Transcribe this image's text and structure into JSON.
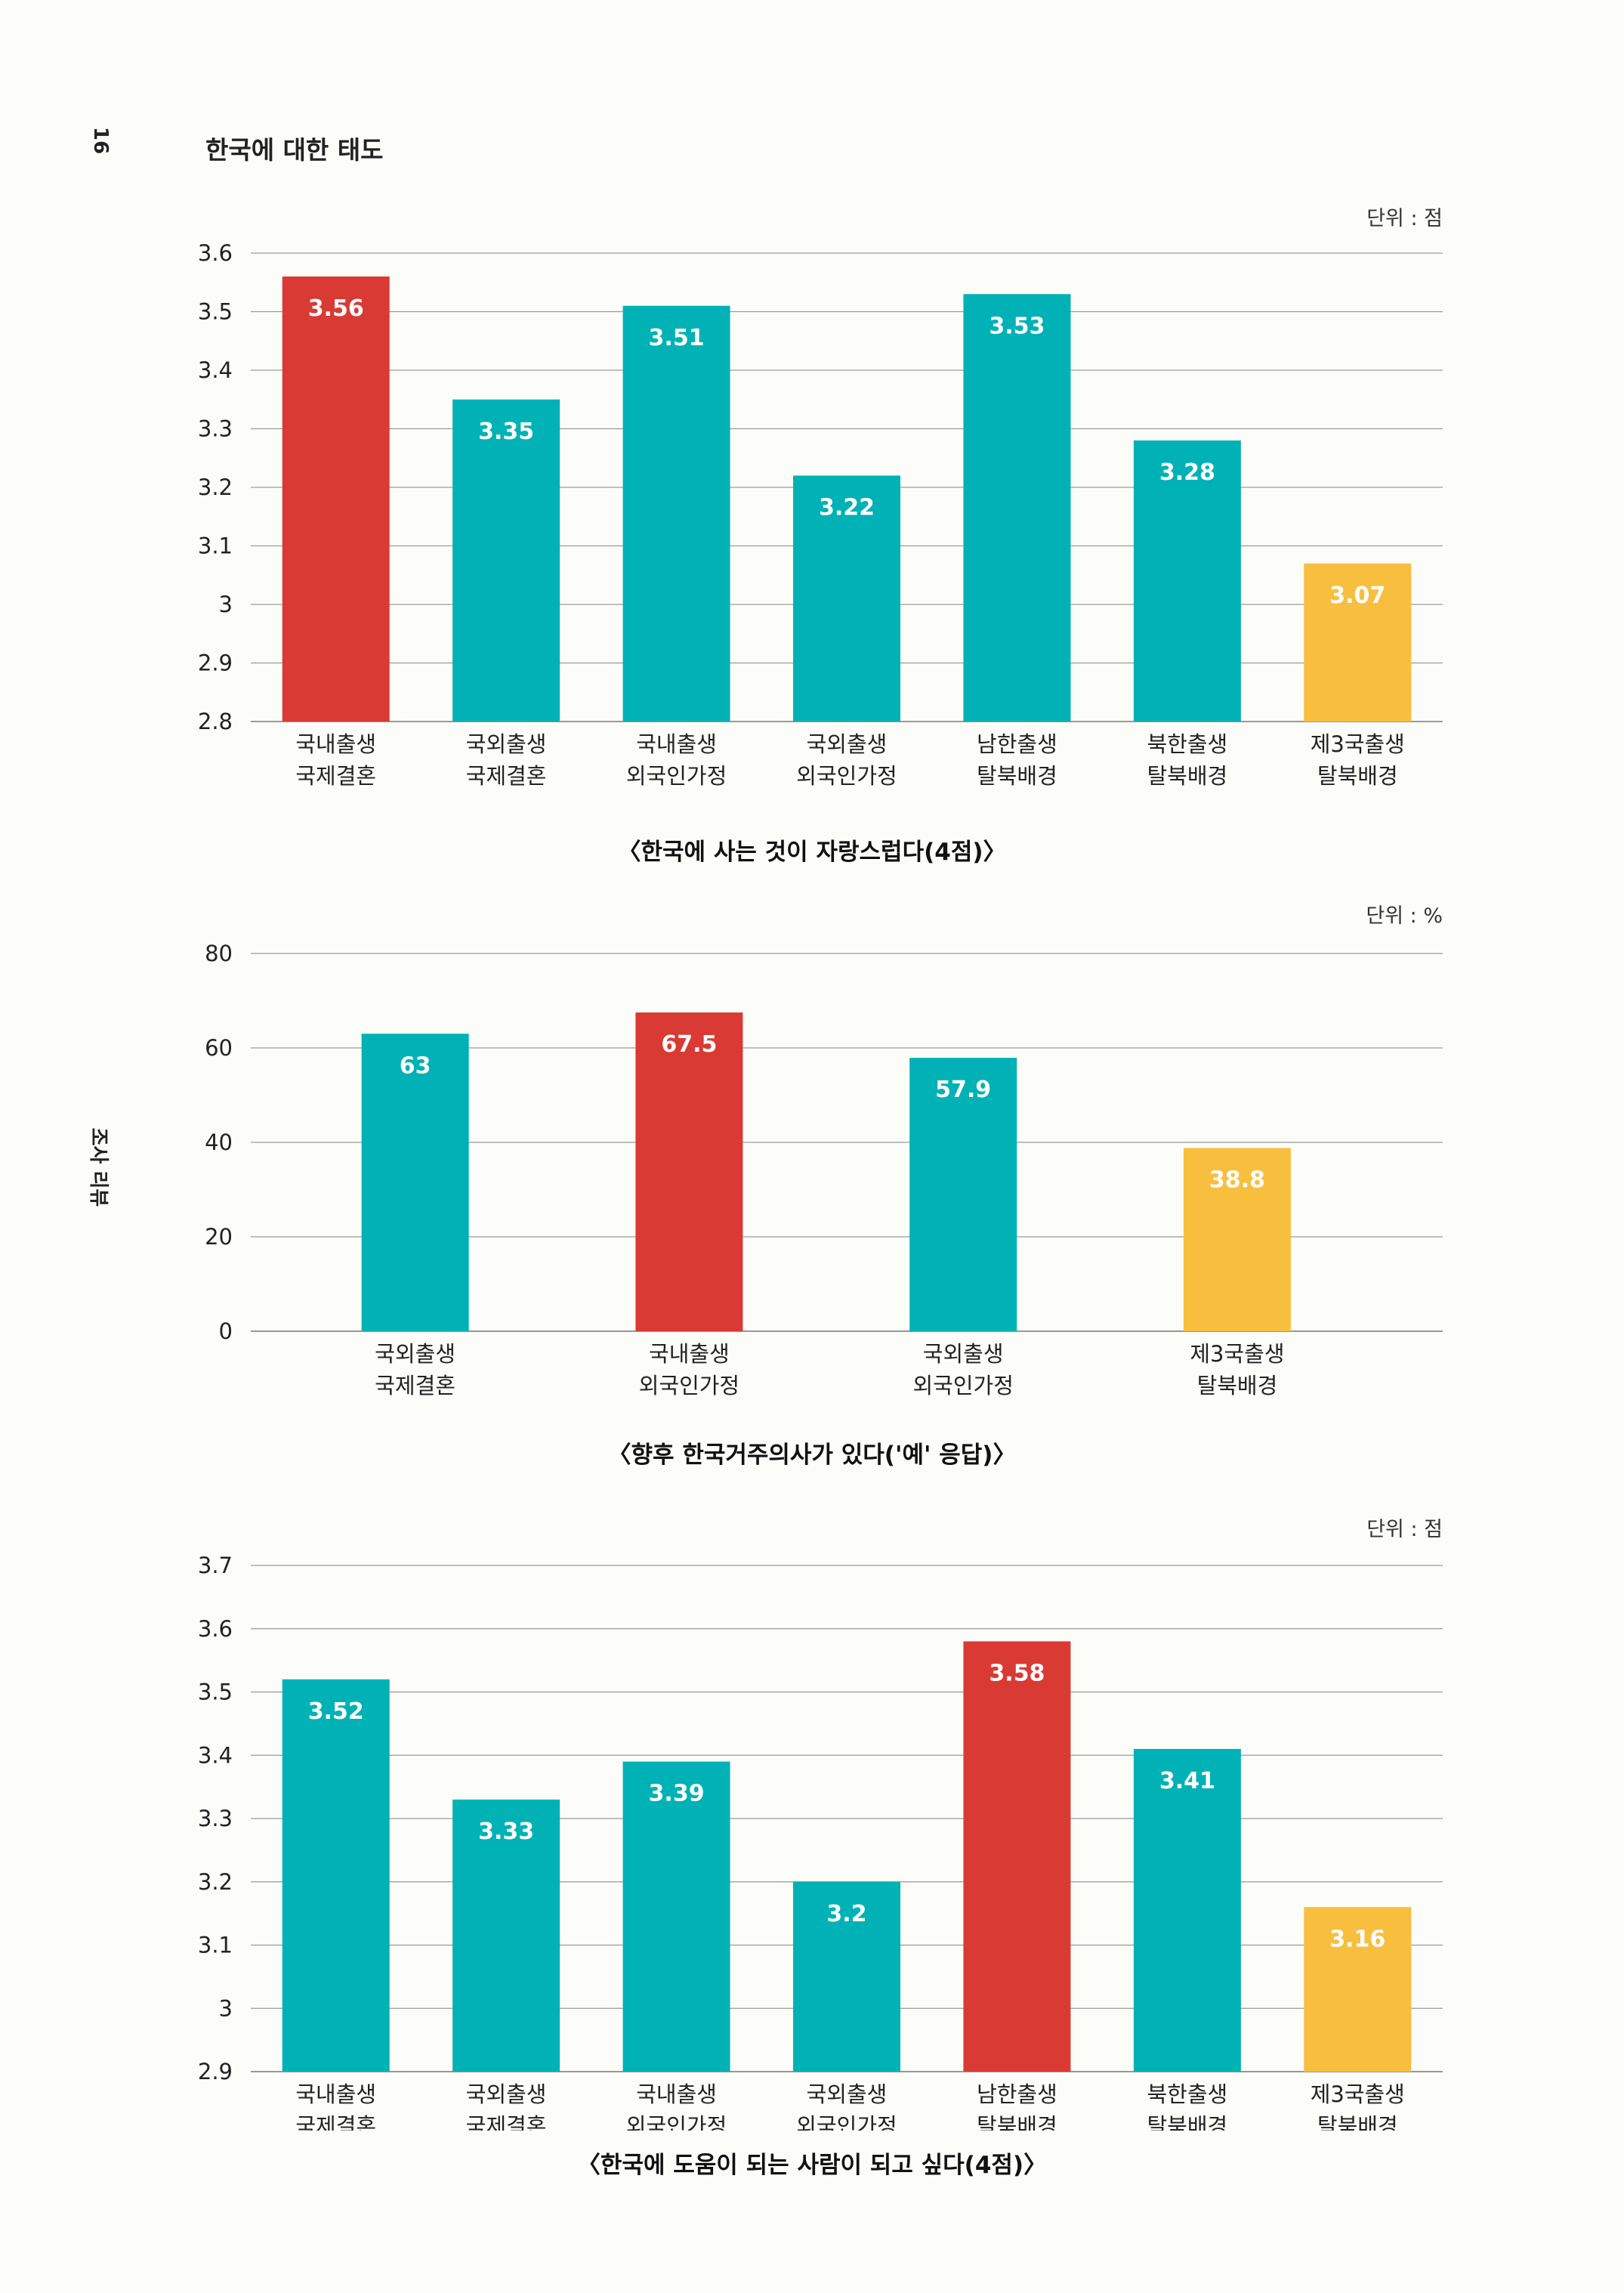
{
  "page": {
    "page_number": "16",
    "title": "한국에 대한 태도",
    "side_label": "조사 리뷰"
  },
  "colors": {
    "teal": "#00b2b5",
    "red": "#d93a33",
    "yellow": "#f8bf3f"
  },
  "chart_data": [
    {
      "type": "bar",
      "unit": "단위 : 점",
      "title": "〈한국에 사는 것이 자랑스럽다(4점)〉",
      "categories": [
        [
          "국내출생",
          "국제결혼"
        ],
        [
          "국외출생",
          "국제결혼"
        ],
        [
          "국내출생",
          "외국인가정"
        ],
        [
          "국외출생",
          "외국인가정"
        ],
        [
          "남한출생",
          "탈북배경"
        ],
        [
          "북한출생",
          "탈북배경"
        ],
        [
          "제3국출생",
          "탈북배경"
        ]
      ],
      "values": [
        3.56,
        3.35,
        3.51,
        3.22,
        3.53,
        3.28,
        3.07
      ],
      "value_labels": [
        "3.56",
        "3.35",
        "3.51",
        "3.22",
        "3.53",
        "3.28",
        "3.07"
      ],
      "colors": [
        "red",
        "teal",
        "teal",
        "teal",
        "teal",
        "teal",
        "yellow"
      ],
      "ylim": [
        2.8,
        3.6
      ],
      "yticks": [
        2.8,
        2.9,
        3,
        3.1,
        3.2,
        3.3,
        3.4,
        3.5,
        3.6
      ],
      "ytick_labels": [
        "2.8",
        "2.9",
        "3",
        "3.1",
        "3.2",
        "3.3",
        "3.4",
        "3.5",
        "3.6"
      ],
      "grid": true
    },
    {
      "type": "bar",
      "unit": "단위 : %",
      "title": "〈향후 한국거주의사가 있다('예' 응답)〉",
      "categories": [
        [
          "국외출생",
          "국제결혼"
        ],
        [
          "국내출생",
          "외국인가정"
        ],
        [
          "국외출생",
          "외국인가정"
        ],
        [
          "제3국출생",
          "탈북배경"
        ]
      ],
      "values": [
        63,
        67.5,
        57.9,
        38.8
      ],
      "value_labels": [
        "63",
        "67.5",
        "57.9",
        "38.8"
      ],
      "colors": [
        "teal",
        "red",
        "teal",
        "yellow"
      ],
      "ylim": [
        0,
        80
      ],
      "yticks": [
        0,
        20,
        40,
        60,
        80
      ],
      "ytick_labels": [
        "0",
        "20",
        "40",
        "60",
        "80"
      ],
      "grid": true
    },
    {
      "type": "bar",
      "unit": "단위 : 점",
      "title": "〈한국에 도움이 되는 사람이 되고 싶다(4점)〉",
      "categories": [
        [
          "국내출생",
          "국제결혼"
        ],
        [
          "국외출생",
          "국제결혼"
        ],
        [
          "국내출생",
          "외국인가정"
        ],
        [
          "국외출생",
          "외국인가정"
        ],
        [
          "남한출생",
          "탈북배경"
        ],
        [
          "북한출생",
          "탈북배경"
        ],
        [
          "제3국출생",
          "탈북배경"
        ]
      ],
      "values": [
        3.52,
        3.33,
        3.39,
        3.2,
        3.58,
        3.41,
        3.16
      ],
      "value_labels": [
        "3.52",
        "3.33",
        "3.39",
        "3.2",
        "3.58",
        "3.41",
        "3.16"
      ],
      "colors": [
        "teal",
        "teal",
        "teal",
        "teal",
        "red",
        "teal",
        "yellow"
      ],
      "ylim": [
        2.9,
        3.7
      ],
      "yticks": [
        2.9,
        3,
        3.1,
        3.2,
        3.3,
        3.4,
        3.5,
        3.6,
        3.7
      ],
      "ytick_labels": [
        "2.9",
        "3",
        "3.1",
        "3.2",
        "3.3",
        "3.4",
        "3.5",
        "3.6",
        "3.7"
      ],
      "grid": true
    }
  ]
}
